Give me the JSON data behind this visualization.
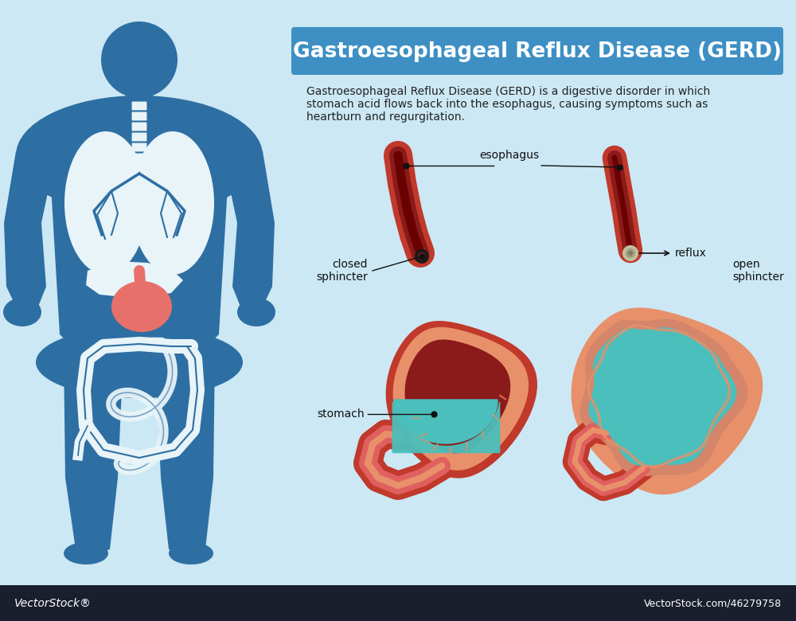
{
  "title": "Gastroesophageal Reflux Disease (GERD)",
  "title_banner_color": "#3d8fc4",
  "title_text_color": "#ffffff",
  "background_color": "#cce8f4",
  "footer_color": "#1a1f2e",
  "footer_left": "VectorStock®",
  "footer_right": "VectorStock.com/46279758",
  "description_line1": "Gastroesophageal Reflux Disease (GERD) is a digestive disorder in which",
  "description_line2": "stomach acid flows back into the esophagus, causing symptoms such as",
  "description_line3": "heartburn and regurgitation.",
  "description_color": "#222222",
  "label_esophagus": "esophagus",
  "label_closed_sphincter": "closed\nsphincter",
  "label_stomach": "stomach",
  "label_reflux": "reflux",
  "label_open_sphincter": "open\nsphincter",
  "human_silhouette_color": "#2e6fa3",
  "organ_white": "#e8f4f8",
  "stomach_red": "#c0392b",
  "stomach_dark_red": "#8b1a1a",
  "stomach_acid": "#4bbfbb",
  "stomach_lining": "#e8906a",
  "stomach_pink": "#e06060",
  "label_font_size": 10,
  "title_font_size": 19,
  "desc_font_size": 10
}
